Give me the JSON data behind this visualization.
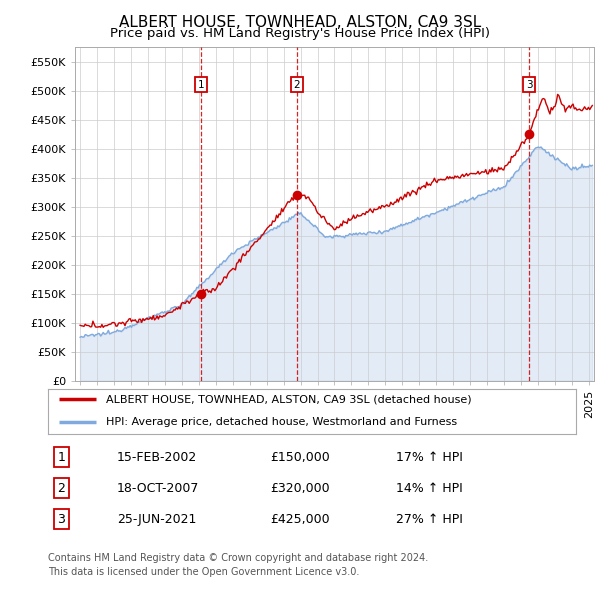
{
  "title": "ALBERT HOUSE, TOWNHEAD, ALSTON, CA9 3SL",
  "subtitle": "Price paid vs. HM Land Registry's House Price Index (HPI)",
  "ylim": [
    0,
    575000
  ],
  "yticks": [
    0,
    50000,
    100000,
    150000,
    200000,
    250000,
    300000,
    350000,
    400000,
    450000,
    500000,
    550000
  ],
  "ytick_labels": [
    "£0",
    "£50K",
    "£100K",
    "£150K",
    "£200K",
    "£250K",
    "£300K",
    "£350K",
    "£400K",
    "£450K",
    "£500K",
    "£550K"
  ],
  "xlim_start": 1994.7,
  "xlim_end": 2025.3,
  "plot_bg_color": "#ffffff",
  "fig_bg_color": "#ffffff",
  "red_line_color": "#cc0000",
  "blue_line_color": "#7faadd",
  "blue_fill_color": "#c8d8f0",
  "sale_dates": [
    2002.12,
    2007.79,
    2021.48
  ],
  "sale_prices": [
    150000,
    320000,
    425000
  ],
  "sale_labels": [
    "1",
    "2",
    "3"
  ],
  "sale_info": [
    {
      "label": "1",
      "date": "15-FEB-2002",
      "price": "£150,000",
      "hpi": "17% ↑ HPI"
    },
    {
      "label": "2",
      "date": "18-OCT-2007",
      "price": "£320,000",
      "hpi": "14% ↑ HPI"
    },
    {
      "label": "3",
      "date": "25-JUN-2021",
      "price": "£425,000",
      "hpi": "27% ↑ HPI"
    }
  ],
  "legend_entries": [
    {
      "label": "ALBERT HOUSE, TOWNHEAD, ALSTON, CA9 3SL (detached house)",
      "color": "#cc0000"
    },
    {
      "label": "HPI: Average price, detached house, Westmorland and Furness",
      "color": "#7faadd"
    }
  ],
  "footer": "Contains HM Land Registry data © Crown copyright and database right 2024.\nThis data is licensed under the Open Government Licence v3.0.",
  "title_fontsize": 11,
  "subtitle_fontsize": 9.5,
  "tick_fontsize": 8,
  "legend_fontsize": 8,
  "table_fontsize": 9,
  "footer_fontsize": 7
}
